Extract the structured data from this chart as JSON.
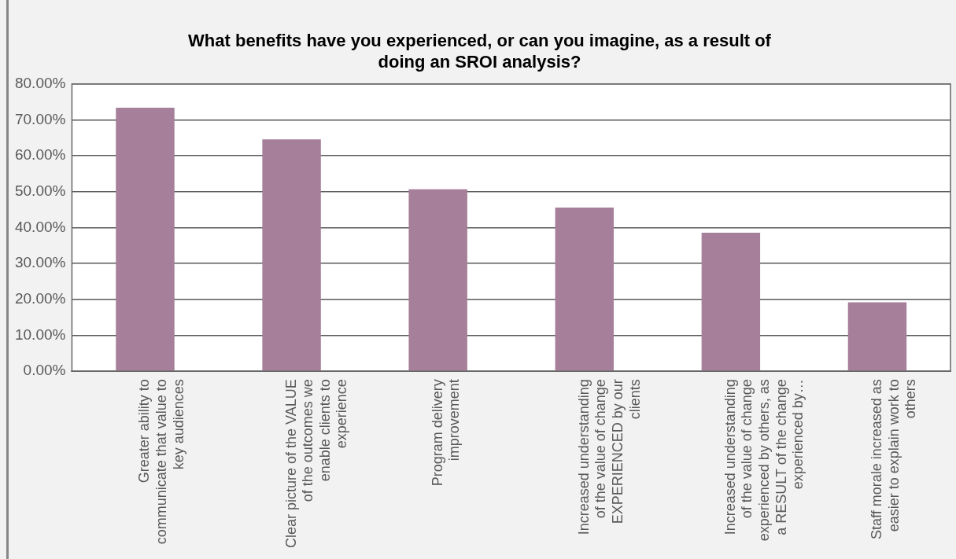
{
  "chart_data": {
    "type": "bar",
    "title": "What benefits have you experienced, or can you imagine, as a result of doing an SROI analysis?",
    "categories": [
      "Greater ability to communicate that value to key audiences",
      "Clear picture of the VALUE of the outcomes we enable clients to experience",
      "Program delivery improvement",
      "Increased understanding of the value of change EXPERIENCED by our clients",
      "Increased understanding of the value of change experienced by others, as a RESULT of the change experienced by…",
      "Staff morale increased as easier to explain work to others"
    ],
    "values": [
      73.4,
      64.6,
      50.7,
      45.6,
      38.6,
      19.2
    ],
    "color": "#a67f9a",
    "ylim": [
      0,
      80
    ],
    "yticks": [
      {
        "value": 0,
        "label": "0.00%"
      },
      {
        "value": 10,
        "label": "10.00%"
      },
      {
        "value": 20,
        "label": "20.00%"
      },
      {
        "value": 30,
        "label": "30.00%"
      },
      {
        "value": 40,
        "label": "40.00%"
      },
      {
        "value": 50,
        "label": "50.00%"
      },
      {
        "value": 60,
        "label": "60.00%"
      },
      {
        "value": 70,
        "label": "70.00%"
      },
      {
        "value": 80,
        "label": "80.00%"
      }
    ],
    "grid": "y",
    "legend": false
  }
}
